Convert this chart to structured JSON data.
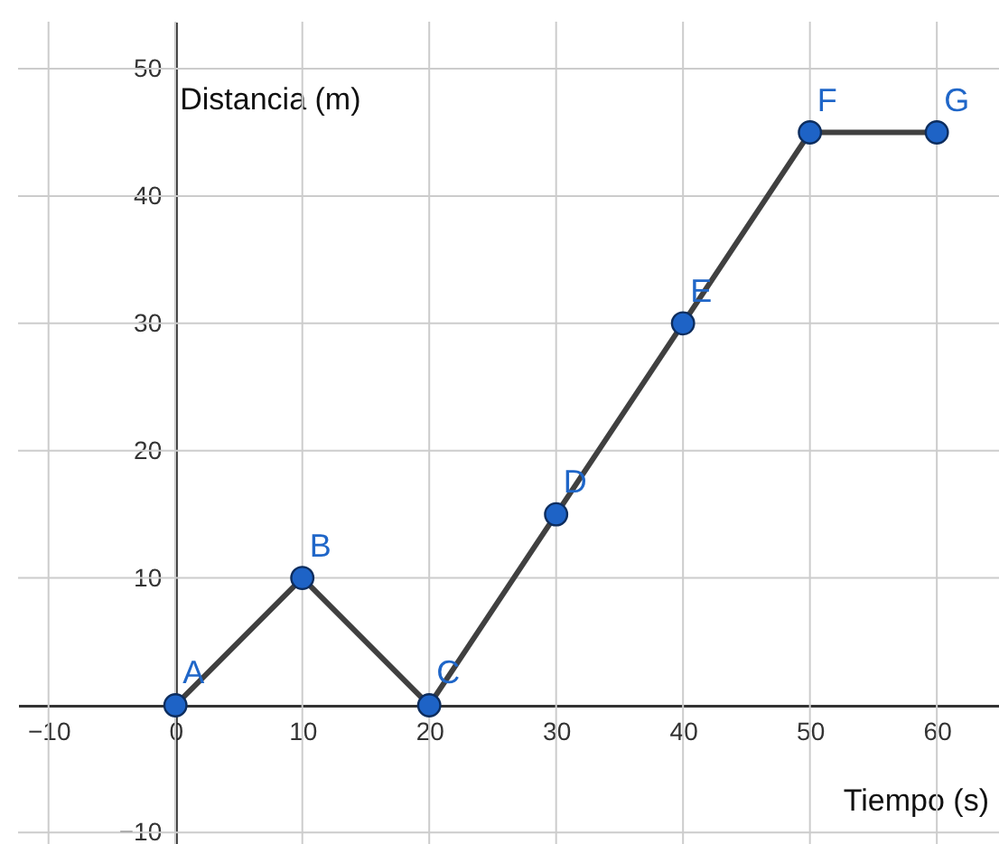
{
  "chart_data": {
    "type": "line",
    "xlabel": "Tiempo (s)",
    "ylabel": "Distancia (m)",
    "x": [
      0,
      10,
      20,
      30,
      40,
      50,
      60
    ],
    "series": [
      {
        "color": "#404040",
        "values": [
          0,
          10,
          0,
          15,
          30,
          45,
          45
        ]
      }
    ],
    "marker": "circle",
    "line_style": "solid",
    "grid": true,
    "xlim": [
      -12.4,
      64.9
    ],
    "ylim": [
      -10.9,
      53.7
    ],
    "xticks": [
      {
        "value": -10,
        "label": "−10"
      },
      0,
      10,
      20,
      30,
      40,
      50,
      60
    ],
    "yticks": [
      {
        "value": -10,
        "label": "−10"
      },
      10,
      20,
      30,
      40,
      50
    ],
    "annotations": [
      {
        "text": "A",
        "x": 0,
        "y": 0
      },
      {
        "text": "B",
        "x": 10,
        "y": 10
      },
      {
        "text": "C",
        "x": 20,
        "y": 0
      },
      {
        "text": "D",
        "x": 30,
        "y": 15
      },
      {
        "text": "E",
        "x": 40,
        "y": 30
      },
      {
        "text": "F",
        "x": 50,
        "y": 45
      },
      {
        "text": "G",
        "x": 60,
        "y": 45
      }
    ]
  }
}
